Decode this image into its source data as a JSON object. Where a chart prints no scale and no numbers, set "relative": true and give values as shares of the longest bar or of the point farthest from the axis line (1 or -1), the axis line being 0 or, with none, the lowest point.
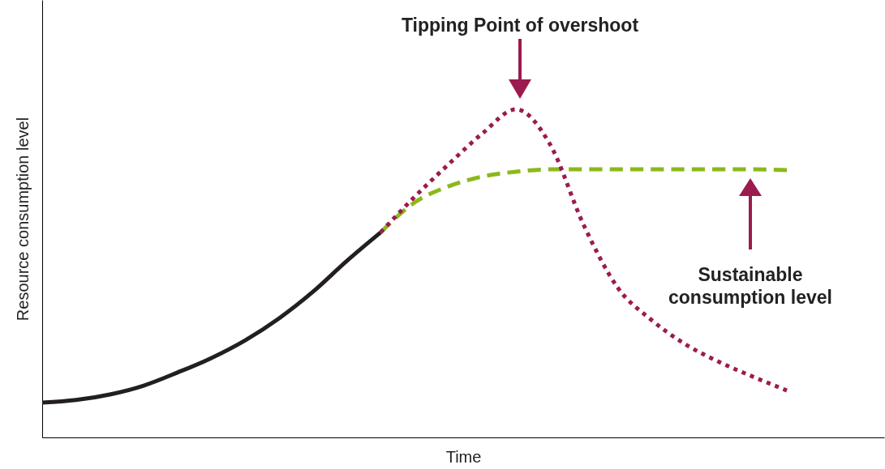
{
  "chart_data": {
    "type": "line",
    "relative": true,
    "xlabel": "Time",
    "ylabel": "Resource consumption level",
    "grid": false,
    "tick_labels": false,
    "categories": [
      null,
      null,
      null,
      null,
      null,
      null,
      null,
      null,
      null,
      null,
      null,
      null,
      null,
      null,
      null,
      null,
      null,
      null,
      null,
      null,
      null,
      null,
      null
    ],
    "series": [
      {
        "color": "#231f20",
        "line_style": "solid",
        "values": [
          0.106,
          0.114,
          0.131,
          0.158,
          0.198,
          0.242,
          0.296,
          0.363,
          0.444,
          0.538,
          0.625,
          null,
          null,
          null,
          null,
          null,
          null,
          null,
          null,
          null,
          null,
          null,
          null
        ]
      },
      {
        "color": "#8cb81a",
        "line_style": "dashed",
        "values": [
          null,
          null,
          null,
          null,
          null,
          null,
          null,
          null,
          null,
          null,
          0.625,
          0.716,
          0.765,
          0.795,
          0.81,
          0.817,
          0.817,
          0.817,
          0.817,
          0.817,
          0.817,
          0.817,
          0.815
        ]
      },
      {
        "color": "#9b1b4f",
        "line_style": "dotted",
        "values": [
          null,
          null,
          null,
          null,
          null,
          null,
          null,
          null,
          null,
          null,
          0.625,
          0.733,
          0.832,
          0.926,
          1,
          0.894,
          0.647,
          0.457,
          0.358,
          0.284,
          0.23,
          0.185,
          0.143
        ]
      }
    ],
    "annotations": [
      "Tipping Point of overshoot",
      "Sustainable\nconsumption level"
    ]
  }
}
